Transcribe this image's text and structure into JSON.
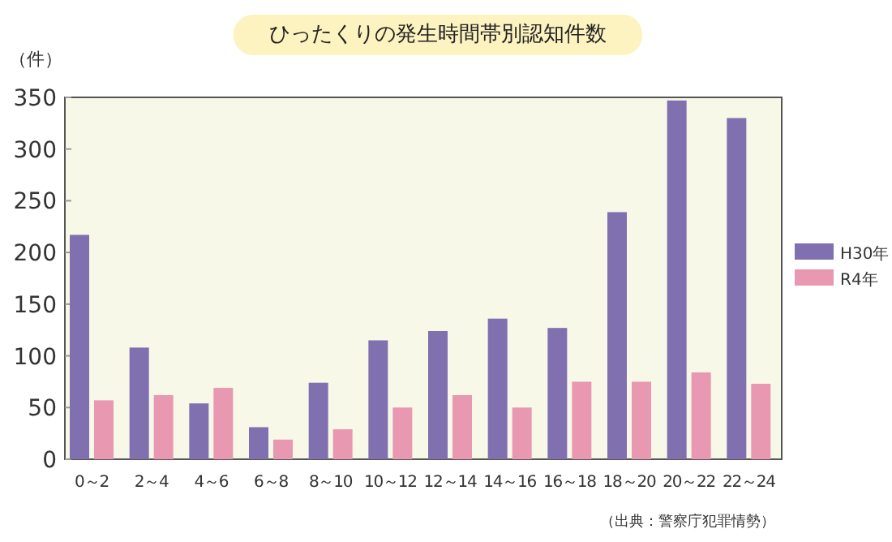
{
  "chart_data": {
    "type": "bar",
    "title": "ひったくりの発生時間帯別認知件数",
    "ylabel": "（件）",
    "categories": [
      "0～2",
      "2～4",
      "4～6",
      "6～8",
      "8～10",
      "10～12",
      "12～14",
      "14～16",
      "16～18",
      "18～20",
      "20～22",
      "22～24"
    ],
    "series": [
      {
        "name": "H30年",
        "color": "#8070b0",
        "values": [
          217,
          108,
          54,
          31,
          74,
          115,
          124,
          136,
          127,
          239,
          347,
          330
        ]
      },
      {
        "name": "R4年",
        "color": "#e898b0",
        "values": [
          57,
          62,
          69,
          19,
          29,
          50,
          62,
          50,
          75,
          75,
          84,
          73
        ]
      }
    ],
    "ylim": [
      0,
      350
    ],
    "yticks": [
      0,
      50,
      100,
      150,
      200,
      250,
      300,
      350
    ],
    "grid": false,
    "legend": "right",
    "annotations": [
      "（出典：警察庁犯罪情勢）"
    ]
  }
}
